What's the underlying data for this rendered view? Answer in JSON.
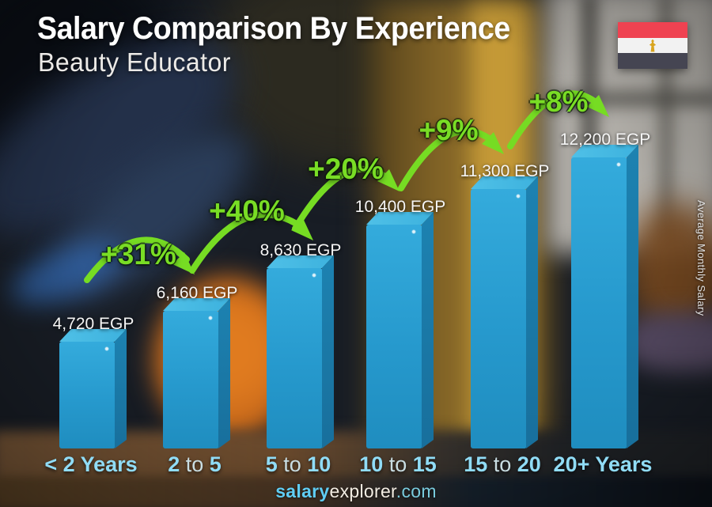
{
  "header": {
    "title": "Salary Comparison By Experience",
    "subtitle": "Beauty Educator"
  },
  "flag": {
    "country": "Egypt",
    "band_colors": [
      "#ef4251",
      "#f2f2f2",
      "#454552"
    ],
    "emblem_color": "#d9a520"
  },
  "chart_data": {
    "type": "bar",
    "title": "Salary Comparison By Experience",
    "subtitle": "Beauty Educator",
    "y_axis_label": "Average Monthly Salary",
    "unit": "EGP",
    "categories": [
      "< 2 Years",
      "2 to 5",
      "5 to 10",
      "10 to 15",
      "15 to 20",
      "20+ Years"
    ],
    "values": [
      4720,
      6160,
      8630,
      10400,
      11300,
      12200
    ],
    "value_labels": [
      "4,720 EGP",
      "6,160 EGP",
      "8,630 EGP",
      "10,400 EGP",
      "11,300 EGP",
      "12,200 EGP"
    ],
    "pct_changes": [
      "+31%",
      "+40%",
      "+20%",
      "+9%",
      "+8%"
    ],
    "bar_color": "#2a9fd4",
    "arrow_color": "#76dc23",
    "legend": "none",
    "grid": "off"
  },
  "footer": {
    "brand_bold": "salary",
    "brand_regular": "explorer",
    "brand_suffix": ".com"
  }
}
